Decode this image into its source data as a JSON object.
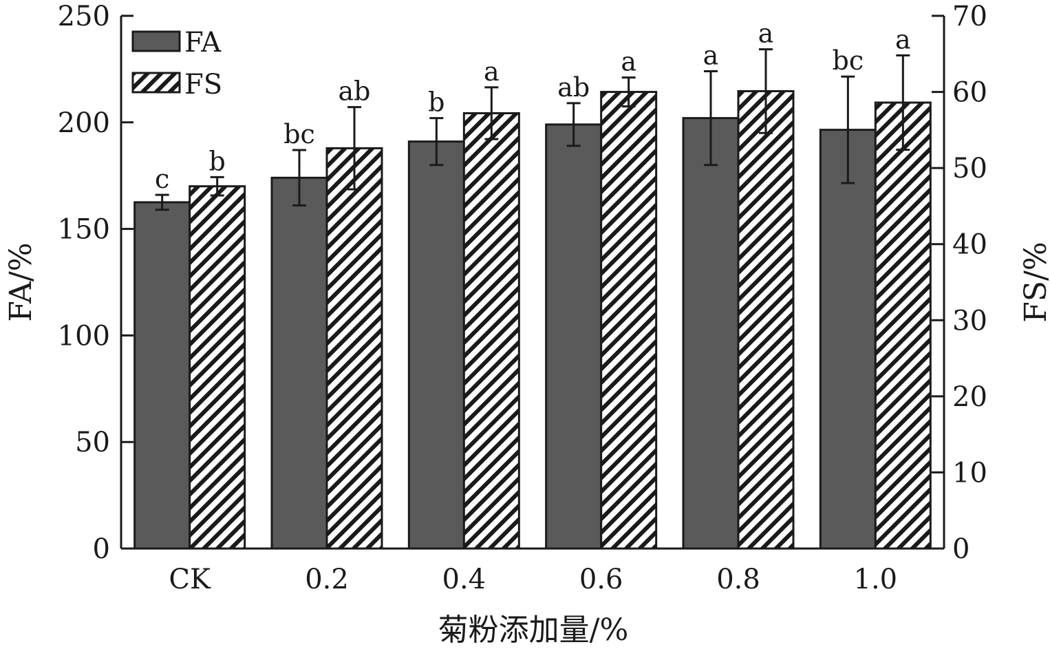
{
  "chart_data": {
    "type": "bar",
    "categories": [
      "CK",
      "0.2",
      "0.4",
      "0.6",
      "0.8",
      "1.0"
    ],
    "xlabel": "菊粉添加量/%",
    "ylabel": "FA/%",
    "y2label": "FS/%",
    "ylim": [
      0,
      250
    ],
    "y2lim": [
      0,
      70
    ],
    "yticks": [
      "0",
      "50",
      "100",
      "150",
      "200",
      "250"
    ],
    "y2ticks": [
      "0",
      "10",
      "20",
      "30",
      "40",
      "50",
      "60",
      "70"
    ],
    "legend_position": "top-left",
    "series": [
      {
        "name": "FA",
        "axis": "left",
        "fill": "#5a5a5a",
        "values": [
          162.5,
          174,
          191,
          199,
          202,
          196.5
        ],
        "errors": [
          3.5,
          13,
          11,
          10,
          22,
          25
        ],
        "labels": [
          "c",
          "bc",
          "b",
          "ab",
          "a",
          "bc"
        ]
      },
      {
        "name": "FS",
        "axis": "right",
        "fill": "hatch",
        "values": [
          47.6,
          52.6,
          57.2,
          60,
          60.1,
          58.6
        ],
        "errors": [
          1.2,
          5.4,
          3.4,
          1.9,
          5.5,
          6.2
        ],
        "labels": [
          "b",
          "ab",
          "a",
          "a",
          "a",
          "a"
        ]
      }
    ]
  }
}
